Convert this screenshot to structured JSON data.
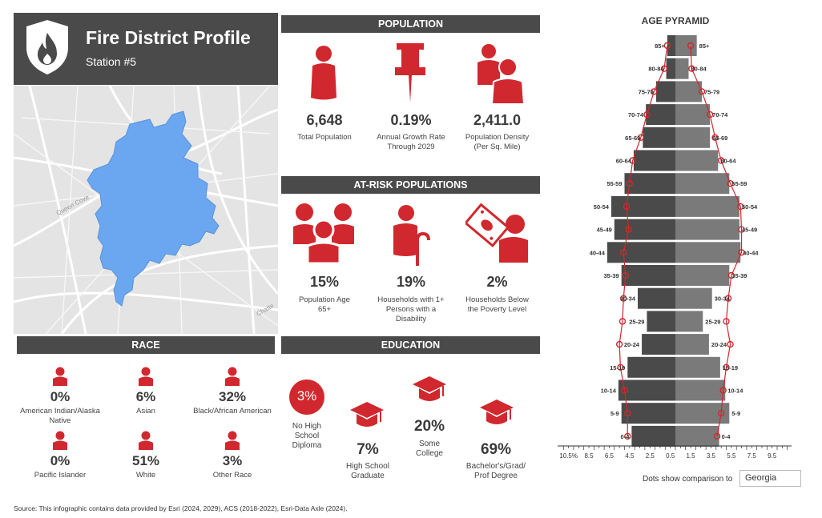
{
  "header": {
    "title": "Fire District Profile",
    "subtitle": "Station #5"
  },
  "icons": {
    "logo": "fire-shield-icon",
    "person": "person-icon",
    "pin": "pushpin-icon",
    "people": "people-icon",
    "cane": "cane-person-icon",
    "money": "money-person-icon",
    "cap": "graduation-cap-icon"
  },
  "colors": {
    "accent": "#d0282e",
    "dark": "#4a4a4a",
    "map_area": "#6aa7f0",
    "pyr_left": "#4a4a4a",
    "pyr_right": "#7a7a7a"
  },
  "population": {
    "heading": "POPULATION",
    "stats": [
      {
        "value": "6,648",
        "label": "Total Population"
      },
      {
        "value": "0.19%",
        "label": "Annual Growth Rate Through 2029"
      },
      {
        "value": "2,411.0",
        "label": "Population Density (Per Sq. Mile)"
      }
    ]
  },
  "at_risk": {
    "heading": "AT-RISK POPULATIONS",
    "stats": [
      {
        "value": "15%",
        "label": "Population Age 65+"
      },
      {
        "value": "19%",
        "label": "Households with 1+ Persons with a Disability"
      },
      {
        "value": "2%",
        "label": "Households Below the Poverty Level"
      }
    ]
  },
  "race": {
    "heading": "RACE",
    "items": [
      {
        "value": "0%",
        "label": "American Indian/Alaska Native"
      },
      {
        "value": "6%",
        "label": "Asian"
      },
      {
        "value": "32%",
        "label": "Black/African American"
      },
      {
        "value": "0%",
        "label": "Pacific Islander"
      },
      {
        "value": "51%",
        "label": "White"
      },
      {
        "value": "3%",
        "label": "Other Race"
      }
    ]
  },
  "education": {
    "heading": "EDUCATION",
    "items": [
      {
        "value": "3%",
        "label": "No High School Diploma"
      },
      {
        "value": "7%",
        "label": "High School Graduate"
      },
      {
        "value": "20%",
        "label": "Some College"
      },
      {
        "value": "69%",
        "label": "Bachelor's/Grad/ Prof Degree"
      }
    ]
  },
  "chart_data": {
    "type": "bar",
    "title": "AGE PYRAMID",
    "orientation": "horizontal-pyramid",
    "categories": [
      "85+",
      "80-84",
      "75-79",
      "70-74",
      "65-69",
      "60-64",
      "55-59",
      "50-54",
      "45-49",
      "40-44",
      "35-39",
      "30-34",
      "25-29",
      "20-24",
      "15-19",
      "10-14",
      "5-9",
      "0-4"
    ],
    "series": [
      {
        "side": "left",
        "values": [
          0.8,
          0.9,
          1.9,
          2.9,
          3.2,
          4.1,
          5.0,
          6.3,
          6.0,
          6.7,
          5.3,
          3.7,
          2.8,
          3.3,
          4.7,
          5.6,
          5.3,
          4.3
        ]
      },
      {
        "side": "right",
        "values": [
          2.1,
          1.3,
          2.6,
          3.4,
          3.4,
          4.2,
          5.3,
          6.3,
          6.3,
          6.4,
          5.3,
          3.6,
          2.7,
          3.3,
          4.4,
          4.9,
          5.3,
          4.3
        ]
      },
      {
        "side": "left",
        "type": "dots",
        "values": [
          0.8,
          1.1,
          2.1,
          2.8,
          3.4,
          4.2,
          4.5,
          4.8,
          4.6,
          5.1,
          4.9,
          5.1,
          5.2,
          5.5,
          5.4,
          5.0,
          4.7,
          4.7
        ]
      },
      {
        "side": "right",
        "type": "dots",
        "values": [
          1.5,
          1.6,
          2.6,
          3.4,
          3.9,
          4.5,
          5.4,
          6.4,
          6.5,
          6.5,
          5.5,
          5.2,
          5.0,
          5.4,
          5.0,
          4.7,
          4.5,
          4.1
        ]
      }
    ],
    "x_ticks": [
      "10.5%",
      "8.5",
      "6.5",
      "4.5",
      "2.5",
      "0.5",
      "1.5",
      "3.5",
      "5.5",
      "7.5",
      "9.5"
    ],
    "xlim": [
      -10.5,
      10.5
    ],
    "comparison_label": "Dots show comparison to",
    "comparison_value": "Georgia"
  },
  "map": {
    "labels": [
      "Queen Cove",
      "Chatte"
    ]
  },
  "source": "Source: This infographic contains data provided by Esri (2024, 2029), ACS (2018-2022), Esri-Data Axle (2024)."
}
